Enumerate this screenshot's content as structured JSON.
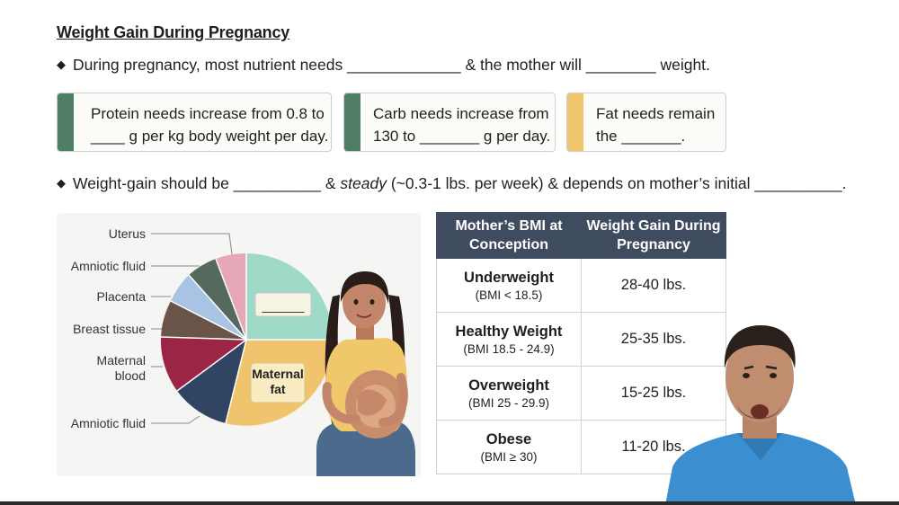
{
  "title": "Weight Gain During Pregnancy",
  "bullet1": "During pregnancy, most nutrient needs _____________ & the mother will ________ weight.",
  "bullet2": {
    "part1": "Weight-gain should be __________ & ",
    "emph": "steady",
    "part2": " (~0.3-1 lbs. per week) & depends on mother’s initial __________."
  },
  "boxes": [
    {
      "line1": "Protein needs increase from 0.8 to",
      "line2": "____ g per kg body weight per day.",
      "color": "#4f7d66"
    },
    {
      "line1": "Carb needs increase from",
      "line2": "130 to _______ g per day.",
      "color": "#4f7d66"
    },
    {
      "line1": "Fat needs remain",
      "line2": "the _______.",
      "color": "#efc56e"
    }
  ],
  "pie": {
    "labels": [
      "Uterus",
      "Amniotic fluid",
      "Placenta",
      "Breast tissue",
      "Maternal",
      "blood",
      "Amniotic fluid"
    ],
    "inner_label_line1": "Maternal",
    "inner_label_line2": "fat",
    "blank": "______",
    "colors": {
      "teal": "#9fd9c7",
      "gold": "#f0c46d",
      "navy": "#2f4562",
      "crimson": "#9c2444",
      "brown": "#6a5447",
      "blue": "#a8c3e3",
      "green": "#55695f",
      "pink": "#e6a8b6"
    }
  },
  "table": {
    "headers": [
      "Mother’s BMI at Conception",
      "Weight Gain During Pregnancy"
    ],
    "rows": [
      {
        "category": "Underweight",
        "range": "(BMI < 18.5)",
        "gain": "28-40 lbs."
      },
      {
        "category": "Healthy Weight",
        "range": "(BMI 18.5 - 24.9)",
        "gain": "25-35 lbs."
      },
      {
        "category": "Overweight",
        "range": "(BMI 25 - 29.9)",
        "gain": "15-25 lbs."
      },
      {
        "category": "Obese",
        "range": "(BMI ≥ 30)",
        "gain": "11-20 lbs."
      }
    ]
  }
}
